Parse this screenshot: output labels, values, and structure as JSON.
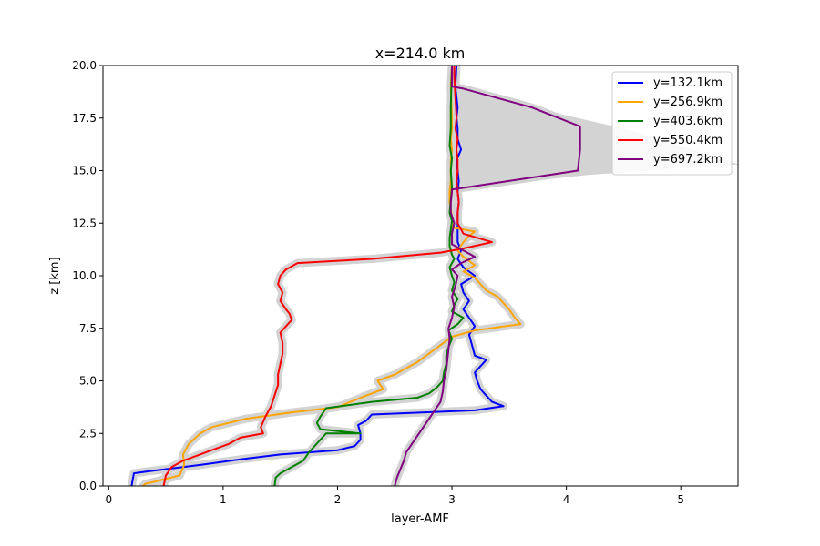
{
  "chart_data": {
    "type": "line",
    "title": "x=214.0 km",
    "xlabel": "layer-AMF",
    "ylabel": "z [km]",
    "xlim": [
      -0.05,
      5.5
    ],
    "ylim": [
      0,
      20
    ],
    "xticks": [
      0,
      1,
      2,
      3,
      4,
      5
    ],
    "yticks": [
      0.0,
      2.5,
      5.0,
      7.5,
      10.0,
      12.5,
      15.0,
      17.5,
      20.0
    ],
    "grid": false,
    "legend": "top-right",
    "shading": "light grey uncertainty band around each series",
    "series": [
      {
        "name": "y=132.1km",
        "color": "#0000ff",
        "x": [
          0.2,
          0.22,
          0.35,
          0.8,
          1.2,
          1.5,
          2.0,
          2.15,
          2.2,
          2.2,
          2.18,
          2.25,
          2.3,
          3.2,
          3.45,
          3.35,
          3.3,
          3.25,
          3.22,
          3.2,
          3.3,
          3.2,
          3.18,
          3.15,
          3.2,
          3.15,
          3.1,
          3.15,
          3.1,
          3.08,
          3.2,
          3.1,
          3.05,
          3.08,
          3.05,
          3.05,
          3.05,
          3.05,
          3.06,
          3.05,
          3.06,
          3.05,
          3.04,
          3.08,
          3.05,
          3.05,
          3.04,
          3.05,
          3.03,
          3.04
        ],
        "y": [
          0.0,
          0.6,
          0.7,
          1.0,
          1.3,
          1.5,
          1.7,
          1.9,
          2.2,
          2.5,
          2.9,
          3.1,
          3.4,
          3.6,
          3.8,
          4.0,
          4.3,
          4.6,
          5.0,
          5.4,
          6.0,
          6.2,
          6.6,
          7.2,
          7.6,
          8.0,
          8.4,
          8.8,
          9.2,
          9.6,
          10.0,
          10.4,
          10.8,
          11.2,
          11.6,
          12.0,
          12.5,
          13.0,
          13.5,
          14.0,
          14.5,
          15.0,
          15.5,
          16.0,
          16.5,
          17.0,
          17.5,
          18.0,
          19.0,
          20.0
        ]
      },
      {
        "name": "y=256.9km",
        "color": "#ffa500",
        "x": [
          0.3,
          0.32,
          0.4,
          0.62,
          0.66,
          0.65,
          0.7,
          0.8,
          0.9,
          1.2,
          1.6,
          2.0,
          2.25,
          2.4,
          2.35,
          2.5,
          2.6,
          2.7,
          2.8,
          2.9,
          3.0,
          3.2,
          3.6,
          3.55,
          3.5,
          3.45,
          3.4,
          3.3,
          3.25,
          3.2,
          3.1,
          3.2,
          3.1,
          3.05,
          3.1,
          3.15,
          3.2,
          3.0,
          3.0,
          2.98,
          2.98,
          2.99,
          2.99,
          2.99,
          3.0,
          2.99,
          3.0,
          3.0,
          2.99,
          3.0
        ],
        "y": [
          0.0,
          0.1,
          0.2,
          0.5,
          1.0,
          1.5,
          2.0,
          2.5,
          2.8,
          3.2,
          3.5,
          3.75,
          4.3,
          4.6,
          5.0,
          5.3,
          5.6,
          5.9,
          6.3,
          6.7,
          7.1,
          7.4,
          7.7,
          8.0,
          8.4,
          8.7,
          9.0,
          9.3,
          9.6,
          9.9,
          10.2,
          10.5,
          10.9,
          11.2,
          11.6,
          11.9,
          12.1,
          12.3,
          12.8,
          13.5,
          14.0,
          14.5,
          15.0,
          15.5,
          16.0,
          16.5,
          17.0,
          17.5,
          19.0,
          20.0
        ]
      },
      {
        "name": "y=403.6km",
        "color": "#008000",
        "x": [
          1.45,
          1.46,
          1.5,
          1.6,
          1.7,
          1.75,
          1.8,
          1.85,
          1.9,
          2.2,
          1.85,
          1.82,
          1.85,
          1.9,
          2.3,
          2.7,
          2.8,
          2.87,
          2.92,
          2.93,
          2.95,
          2.95,
          2.97,
          3.0,
          2.97,
          3.05,
          3.1,
          3.0,
          3.02,
          3.05,
          3.0,
          3.02,
          3.0,
          2.98,
          3.02,
          3.0,
          2.98,
          2.98,
          2.99,
          3.0,
          2.98,
          2.99,
          3.0,
          2.99,
          3.0,
          2.98,
          2.99,
          2.99,
          3.0
        ],
        "y": [
          0.0,
          0.4,
          0.6,
          0.9,
          1.2,
          1.6,
          1.9,
          2.2,
          2.5,
          2.5,
          2.7,
          3.0,
          3.3,
          3.7,
          4.0,
          4.2,
          4.4,
          4.7,
          5.0,
          5.4,
          5.8,
          6.2,
          6.6,
          7.0,
          7.4,
          7.7,
          8.0,
          8.3,
          8.6,
          8.9,
          9.3,
          9.7,
          10.0,
          10.4,
          10.8,
          11.0,
          11.4,
          11.8,
          12.2,
          12.6,
          13.0,
          13.6,
          14.2,
          15.0,
          15.6,
          16.2,
          17.0,
          18.0,
          20.0
        ]
      },
      {
        "name": "y=550.4km",
        "color": "#ff0000",
        "x": [
          0.48,
          0.5,
          0.55,
          0.65,
          0.75,
          0.9,
          1.05,
          1.15,
          1.35,
          1.33,
          1.37,
          1.42,
          1.45,
          1.48,
          1.48,
          1.5,
          1.52,
          1.52,
          1.5,
          1.55,
          1.6,
          1.58,
          1.55,
          1.5,
          1.52,
          1.48,
          1.5,
          1.55,
          1.65,
          2.3,
          2.9,
          3.1,
          3.35,
          3.1,
          3.05,
          3.05,
          3.06,
          3.05,
          3.04,
          3.05,
          3.05,
          3.04,
          3.05,
          3.03,
          3.04,
          3.03,
          3.02,
          3.02
        ],
        "y": [
          0.0,
          0.5,
          0.9,
          1.2,
          1.4,
          1.7,
          2.0,
          2.3,
          2.5,
          2.8,
          3.3,
          3.8,
          4.3,
          4.8,
          5.3,
          5.8,
          6.3,
          6.8,
          7.3,
          7.6,
          7.9,
          8.2,
          8.4,
          8.8,
          9.2,
          9.6,
          10.0,
          10.3,
          10.6,
          10.8,
          11.1,
          11.3,
          11.6,
          12.0,
          12.5,
          13.0,
          13.5,
          14.0,
          14.5,
          15.0,
          15.5,
          16.0,
          16.5,
          17.0,
          17.5,
          18.5,
          19.5,
          20.0
        ]
      },
      {
        "name": "y=697.2km",
        "color": "#800080",
        "x": [
          2.5,
          2.52,
          2.55,
          2.58,
          2.6,
          2.65,
          2.7,
          2.75,
          2.8,
          2.85,
          2.9,
          2.92,
          2.93,
          2.95,
          2.96,
          2.97,
          2.98,
          2.97,
          3.0,
          3.02,
          3.0,
          3.03,
          3.05,
          3.0,
          3.08,
          3.2,
          3.1,
          3.0,
          3.0,
          3.02,
          2.99,
          2.99,
          3.0,
          3.0,
          4.1,
          4.12,
          4.12,
          3.7,
          3.1,
          3.0,
          3.0,
          3.0,
          3.0
        ],
        "y": [
          0.0,
          0.4,
          0.8,
          1.2,
          1.6,
          2.0,
          2.4,
          2.8,
          3.2,
          3.6,
          4.0,
          4.5,
          5.0,
          5.5,
          6.0,
          6.5,
          7.0,
          7.5,
          8.0,
          8.5,
          9.0,
          9.5,
          10.0,
          10.3,
          10.6,
          10.9,
          11.2,
          11.5,
          12.0,
          12.5,
          13.0,
          13.5,
          14.0,
          14.1,
          15.0,
          16.0,
          17.1,
          18.0,
          18.9,
          19.0,
          19.5,
          19.8,
          20.0
        ]
      }
    ]
  }
}
